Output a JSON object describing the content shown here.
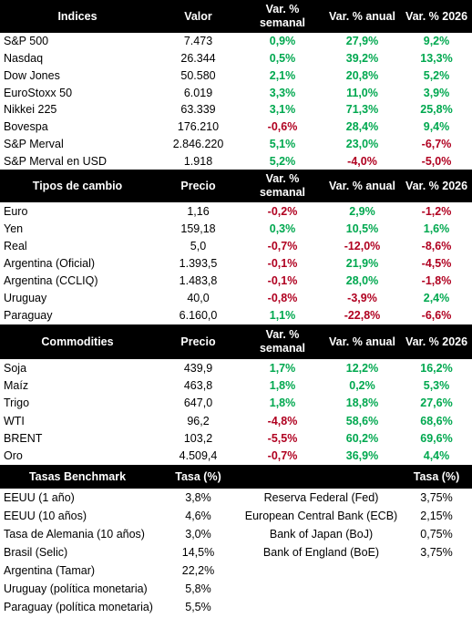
{
  "sections": [
    {
      "headers": [
        "Indices",
        "Valor",
        "Var. % semanal",
        "Var. % anual",
        "Var. % 2026"
      ],
      "rows": [
        [
          "S&P 500",
          "7.473",
          "0,9%",
          "27,9%",
          "9,2%"
        ],
        [
          "Nasdaq",
          "26.344",
          "0,5%",
          "39,2%",
          "13,3%"
        ],
        [
          "Dow Jones",
          "50.580",
          "2,1%",
          "20,8%",
          "5,2%"
        ],
        [
          "EuroStoxx 50",
          "6.019",
          "3,3%",
          "11,0%",
          "3,9%"
        ],
        [
          "Nikkei 225",
          "63.339",
          "3,1%",
          "71,3%",
          "25,8%"
        ],
        [
          "Bovespa",
          "176.210",
          "-0,6%",
          "28,4%",
          "9,4%"
        ],
        [
          "S&P Merval",
          "2.846.220",
          "5,1%",
          "23,0%",
          "-6,7%"
        ],
        [
          "S&P Merval en USD",
          "1.918",
          "5,2%",
          "-4,0%",
          "-5,0%"
        ]
      ]
    },
    {
      "headers": [
        "Tipos de cambio",
        "Precio",
        "Var. % semanal",
        "Var. % anual",
        "Var. % 2026"
      ],
      "rows": [
        [
          "Euro",
          "1,16",
          "-0,2%",
          "2,9%",
          "-1,2%"
        ],
        [
          "Yen",
          "159,18",
          "0,3%",
          "10,5%",
          "1,6%"
        ],
        [
          "Real",
          "5,0",
          "-0,7%",
          "-12,0%",
          "-8,6%"
        ],
        [
          "Argentina (Oficial)",
          "1.393,5",
          "-0,1%",
          "21,9%",
          "-4,5%"
        ],
        [
          "Argentina (CCLIQ)",
          "1.483,8",
          "-0,1%",
          "28,0%",
          "-1,8%"
        ],
        [
          "Uruguay",
          "40,0",
          "-0,8%",
          "-3,9%",
          "2,4%"
        ],
        [
          "Paraguay",
          "6.160,0",
          "1,1%",
          "-22,8%",
          "-6,6%"
        ]
      ]
    },
    {
      "headers": [
        "Commodities",
        "Precio",
        "Var. % semanal",
        "Var. % anual",
        "Var. % 2026"
      ],
      "rows": [
        [
          "Soja",
          "439,9",
          "1,7%",
          "12,2%",
          "16,2%"
        ],
        [
          "Maíz",
          "463,8",
          "1,8%",
          "0,2%",
          "5,3%"
        ],
        [
          "Trigo",
          "647,0",
          "1,8%",
          "18,8%",
          "27,6%"
        ],
        [
          "WTI",
          "96,2",
          "-4,8%",
          "58,6%",
          "68,6%"
        ],
        [
          "BRENT",
          "103,2",
          "-5,5%",
          "60,2%",
          "69,6%"
        ],
        [
          "Oro",
          "4.509,4",
          "-0,7%",
          "36,9%",
          "4,4%"
        ]
      ]
    }
  ],
  "tasas": {
    "headers": [
      "Tasas Benchmark",
      "Tasa (%)",
      "Tasa (%)"
    ],
    "left_rows": [
      [
        "EEUU (1 año)",
        "3,8%"
      ],
      [
        "EEUU (10 años)",
        "4,6%"
      ],
      [
        "Tasa de Alemania (10 años)",
        "3,0%"
      ],
      [
        "Brasil (Selic)",
        "14,5%"
      ],
      [
        "Argentina (Tamar)",
        "22,2%"
      ],
      [
        "Uruguay (política monetaria)",
        "5,8%"
      ],
      [
        "Paraguay (política monetaria)",
        "5,5%"
      ]
    ],
    "right_rows": [
      [
        "Reserva Federal (Fed)",
        "3,75%"
      ],
      [
        "European Central Bank (ECB)",
        "2,15%"
      ],
      [
        "Bank of Japan (BoJ)",
        "0,75%"
      ],
      [
        "Bank of England (BoE)",
        "3,75%"
      ]
    ]
  }
}
